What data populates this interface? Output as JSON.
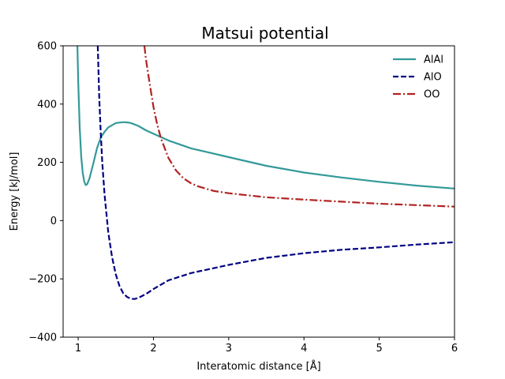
{
  "chart_data": {
    "type": "line",
    "title": "Matsui potential",
    "xlabel": "Interatomic distance [Å]",
    "ylabel": "Energy [kJ/mol]",
    "xlim": [
      0.8,
      6
    ],
    "ylim": [
      -400,
      600
    ],
    "xticks": [
      1,
      2,
      3,
      4,
      5,
      6
    ],
    "yticks": [
      -400,
      -200,
      0,
      200,
      400,
      600
    ],
    "xtick_labels": [
      "1",
      "2",
      "3",
      "4",
      "5",
      "6"
    ],
    "ytick_labels": [
      "−400",
      "−200",
      "0",
      "200",
      "400",
      "600"
    ],
    "grid": false,
    "legend_position": "top-right",
    "series": [
      {
        "name": "AlAl",
        "color": "#339999",
        "dash": "solid",
        "x": [
          0.99,
          1.0,
          1.02,
          1.04,
          1.06,
          1.08,
          1.1,
          1.12,
          1.15,
          1.2,
          1.25,
          1.3,
          1.35,
          1.4,
          1.5,
          1.6,
          1.65,
          1.7,
          1.8,
          1.9,
          2.0,
          2.2,
          2.5,
          3.0,
          3.5,
          4.0,
          4.5,
          5.0,
          5.5,
          6.0
        ],
        "y": [
          600,
          480,
          320,
          220,
          165,
          135,
          122,
          125,
          145,
          195,
          248,
          285,
          305,
          320,
          335,
          338,
          337,
          335,
          325,
          310,
          298,
          275,
          248,
          218,
          188,
          165,
          148,
          133,
          120,
          110
        ]
      },
      {
        "name": "AlO",
        "color": "#000080",
        "dash": "dashed",
        "x": [
          1.26,
          1.28,
          1.3,
          1.32,
          1.35,
          1.4,
          1.45,
          1.5,
          1.55,
          1.6,
          1.65,
          1.7,
          1.75,
          1.8,
          1.9,
          2.0,
          2.2,
          2.5,
          3.0,
          3.5,
          4.0,
          4.5,
          5.0,
          5.5,
          6.0
        ],
        "y": [
          600,
          420,
          300,
          200,
          90,
          -40,
          -125,
          -185,
          -225,
          -250,
          -262,
          -268,
          -269,
          -265,
          -252,
          -235,
          -205,
          -180,
          -152,
          -128,
          -112,
          -100,
          -92,
          -82,
          -74
        ]
      },
      {
        "name": "OO",
        "color": "#b22222",
        "dash": "dashdot",
        "x": [
          1.88,
          1.9,
          1.95,
          2.0,
          2.05,
          2.1,
          2.2,
          2.3,
          2.4,
          2.5,
          2.6,
          2.8,
          3.0,
          3.5,
          4.0,
          4.5,
          5.0,
          5.5,
          6.0
        ],
        "y": [
          600,
          555,
          470,
          390,
          330,
          282,
          215,
          172,
          145,
          128,
          117,
          102,
          94,
          80,
          72,
          65,
          58,
          53,
          48
        ]
      }
    ]
  }
}
